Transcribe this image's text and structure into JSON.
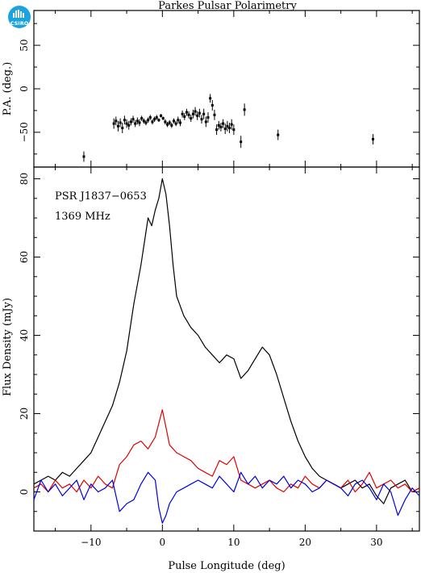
{
  "header": {
    "title": "Parkes Pulsar Polarimetry",
    "logo_text": "CSIRO"
  },
  "chart_data": [
    {
      "type": "scatter",
      "panel": "position-angle",
      "ylabel": "P.A. (deg.)",
      "xlim": [
        -18,
        36
      ],
      "ylim": [
        -90,
        90
      ],
      "yticks": [
        -50,
        0,
        50
      ],
      "grid": false,
      "series": [
        {
          "x": [
            -11,
            -6.8,
            -6.5,
            -6.2,
            -5.9,
            -5.6,
            -5.3,
            -5.0,
            -4.7,
            -4.4,
            -4.1,
            -3.8,
            -3.5,
            -3.2,
            -2.9,
            -2.6,
            -2.3,
            -2.0,
            -1.7,
            -1.4,
            -1.1,
            -0.8,
            -0.5,
            -0.2,
            0.1,
            0.4,
            0.7,
            1.0,
            1.3,
            1.6,
            1.9,
            2.2,
            2.5,
            2.8,
            3.1,
            3.4,
            3.7,
            4.0,
            4.3,
            4.6,
            4.9,
            5.2,
            5.5,
            5.8,
            6.1,
            6.4,
            6.7,
            7.0,
            7.3,
            7.6,
            7.9,
            8.2,
            8.5,
            8.8,
            9.1,
            9.4,
            9.7,
            10.0,
            11.0,
            11.5,
            16.2,
            29.5
          ],
          "y": [
            -78,
            -40,
            -37,
            -43,
            -39,
            -45,
            -36,
            -40,
            -42,
            -38,
            -35,
            -40,
            -37,
            -39,
            -34,
            -37,
            -39,
            -36,
            -33,
            -38,
            -35,
            -33,
            -36,
            -31,
            -34,
            -38,
            -41,
            -39,
            -42,
            -37,
            -40,
            -36,
            -39,
            -29,
            -32,
            -27,
            -30,
            -34,
            -29,
            -26,
            -31,
            -28,
            -35,
            -29,
            -38,
            -33,
            -11,
            -19,
            -30,
            -47,
            -42,
            -44,
            -40,
            -46,
            -43,
            -45,
            -41,
            -47,
            -61,
            -24,
            -53,
            -58
          ],
          "yerr": [
            6,
            6,
            5,
            6,
            5,
            6,
            5,
            5,
            5,
            4,
            4,
            4,
            4,
            4,
            3,
            3,
            3,
            3,
            3,
            3,
            3,
            3,
            2,
            2,
            2,
            3,
            3,
            3,
            3,
            3,
            3,
            4,
            4,
            4,
            4,
            4,
            4,
            4,
            5,
            5,
            5,
            5,
            5,
            6,
            6,
            6,
            5,
            6,
            6,
            6,
            5,
            5,
            5,
            6,
            6,
            6,
            6,
            6,
            7,
            7,
            6,
            6
          ]
        }
      ]
    },
    {
      "type": "line",
      "panel": "profile",
      "annotations": [
        "PSR J1837−0653",
        "1369 MHz"
      ],
      "xlabel": "Pulse Longitude (deg)",
      "ylabel": "Flux Density (mJy)",
      "xlim": [
        -18,
        36
      ],
      "ylim": [
        -10,
        83
      ],
      "xticks": [
        -10,
        0,
        10,
        20,
        30
      ],
      "yticks": [
        0,
        20,
        40,
        60,
        80
      ],
      "grid": false,
      "series": [
        {
          "color": "#000000",
          "x": [
            -18,
            -17,
            -16,
            -15,
            -14,
            -13,
            -12,
            -11,
            -10,
            -9,
            -8,
            -7,
            -6,
            -5,
            -4,
            -3,
            -2.5,
            -2,
            -1.5,
            -1,
            -0.5,
            0,
            0.5,
            1,
            1.5,
            2,
            3,
            4,
            5,
            6,
            7,
            8,
            9,
            10,
            11,
            12,
            13,
            14,
            15,
            16,
            17,
            18,
            19,
            20,
            21,
            22,
            23,
            24,
            25,
            26,
            27,
            28,
            29,
            30,
            31,
            32,
            33,
            34,
            35,
            36
          ],
          "y": [
            2,
            3,
            4,
            3,
            5,
            4,
            6,
            8,
            10,
            14,
            18,
            22,
            28,
            36,
            48,
            58,
            64,
            70,
            68,
            72,
            75,
            80,
            76,
            68,
            58,
            50,
            45,
            42,
            40,
            37,
            35,
            33,
            35,
            34,
            29,
            31,
            34,
            37,
            35,
            30,
            24,
            18,
            13,
            9,
            6,
            4,
            3,
            2,
            1,
            2,
            3,
            1,
            2,
            -1,
            -3,
            1,
            2,
            3,
            0,
            1
          ]
        },
        {
          "color": "#e00000",
          "x": [
            -18,
            -17,
            -16,
            -15,
            -14,
            -13,
            -12,
            -11,
            -10,
            -9,
            -8,
            -7,
            -6,
            -5,
            -4,
            -3,
            -2,
            -1,
            0,
            1,
            2,
            3,
            4,
            5,
            6,
            7,
            8,
            9,
            10,
            11,
            12,
            13,
            14,
            15,
            16,
            17,
            18,
            19,
            20,
            21,
            22,
            23,
            24,
            25,
            26,
            27,
            28,
            29,
            30,
            31,
            32,
            33,
            34,
            35,
            36
          ],
          "y": [
            1,
            2,
            0,
            3,
            1,
            2,
            0,
            3,
            1,
            4,
            2,
            1,
            7,
            9,
            12,
            13,
            11,
            14,
            21,
            12,
            10,
            9,
            8,
            6,
            5,
            4,
            8,
            7,
            9,
            3,
            2,
            1,
            2,
            3,
            1,
            0,
            2,
            1,
            4,
            2,
            1,
            3,
            2,
            1,
            3,
            0,
            2,
            5,
            1,
            2,
            3,
            1,
            2,
            0,
            1
          ]
        },
        {
          "color": "#0000e0",
          "x": [
            -18,
            -17,
            -16,
            -15,
            -14,
            -13,
            -12,
            -11,
            -10,
            -9,
            -8,
            -7,
            -6,
            -5,
            -4,
            -3,
            -2,
            -1,
            -0.5,
            0,
            0.5,
            1,
            2,
            3,
            4,
            5,
            6,
            7,
            8,
            9,
            10,
            11,
            12,
            13,
            14,
            15,
            16,
            17,
            18,
            19,
            20,
            21,
            22,
            23,
            24,
            25,
            26,
            27,
            28,
            29,
            30,
            31,
            32,
            33,
            34,
            35,
            36
          ],
          "y": [
            -2,
            3,
            0,
            2,
            -1,
            1,
            3,
            -2,
            2,
            0,
            1,
            3,
            -5,
            -3,
            -2,
            2,
            5,
            3,
            -4,
            -8,
            -6,
            -3,
            0,
            1,
            2,
            3,
            2,
            1,
            4,
            2,
            0,
            5,
            2,
            4,
            1,
            3,
            2,
            4,
            1,
            3,
            2,
            0,
            1,
            3,
            2,
            1,
            -1,
            2,
            3,
            1,
            -2,
            2,
            0,
            -6,
            -2,
            1,
            -1
          ]
        }
      ]
    }
  ]
}
